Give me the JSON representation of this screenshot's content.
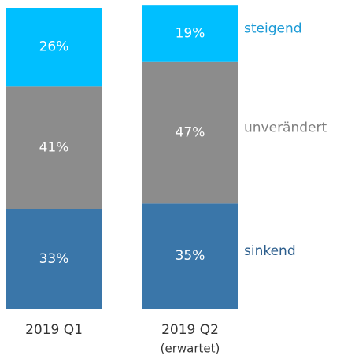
{
  "chart_data": {
    "type": "stacked_bar",
    "categories": [
      "2019 Q1",
      "2019 Q2"
    ],
    "annotation": "(erwartet)",
    "ylim": [
      0,
      100
    ],
    "series": [
      {
        "name": "sinkend",
        "color": "#3a76a9",
        "label_color": "#2b5d8c",
        "values": [
          33,
          35
        ],
        "value_labels": [
          "33%",
          "35%"
        ]
      },
      {
        "name": "unverändert",
        "color": "#8c8c8c",
        "label_color": "#7f7f7f",
        "values": [
          41,
          47
        ],
        "value_labels": [
          "41%",
          "47%"
        ]
      },
      {
        "name": "steigend",
        "color": "#00bfff",
        "label_color": "#1b9ad6",
        "values": [
          26,
          19
        ],
        "value_labels": [
          "26%",
          "19%"
        ]
      }
    ]
  }
}
